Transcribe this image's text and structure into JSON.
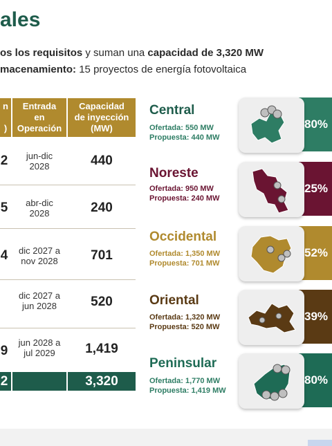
{
  "header": {
    "title": "ales",
    "line1_prefix": "os los requisitos",
    "line1_mid": " y suman una ",
    "line1_bold": "capacidad de 3,320 MW",
    "line2_bold": "macenamiento:",
    "line2_rest": " 15 proyectos de energía fotovoltaica"
  },
  "table": {
    "col0_header_top": "n",
    "col0_header_bottom": ")",
    "col_entrada": [
      "Entrada",
      "en",
      "Operación"
    ],
    "col_capacidad": [
      "Capacidad",
      "de inyección",
      "(MW)"
    ],
    "rows": [
      {
        "left": "2",
        "entrada": [
          "jun-dic",
          "2028"
        ],
        "capacidad": "440"
      },
      {
        "left": "5",
        "entrada": [
          "abr-dic",
          "2028"
        ],
        "capacidad": "240"
      },
      {
        "left": "4",
        "entrada": [
          "dic 2027 a",
          "nov 2028"
        ],
        "capacidad": "701"
      },
      {
        "left": "",
        "entrada": [
          "dic 2027 a",
          "jun 2028"
        ],
        "capacidad": "520"
      },
      {
        "left": "9",
        "entrada": [
          "jun 2028 a",
          "jul 2029"
        ],
        "capacidad": "1,419"
      }
    ],
    "total_left": "2",
    "total_capacidad": "3,320"
  },
  "regions": [
    {
      "name": "Central",
      "ofertada": "Ofertada: 550 MW",
      "propuesta": "Propuesta: 440 MW",
      "pct": "80%",
      "color": "#2e7d64",
      "name_color": "#1e5c4b",
      "map_icon": "central-map-icon"
    },
    {
      "name": "Noreste",
      "ofertada": "Ofertada: 950 MW",
      "propuesta": "Propuesta: 240 MW",
      "pct": "25%",
      "color": "#6a1432",
      "name_color": "#6a1432",
      "map_icon": "noreste-map-icon"
    },
    {
      "name": "Occidental",
      "ofertada": "Ofertada: 1,350 MW",
      "propuesta": "Propuesta: 701 MW",
      "pct": "52%",
      "color": "#b08a2e",
      "name_color": "#b08a2e",
      "map_icon": "occidental-map-icon"
    },
    {
      "name": "Oriental",
      "ofertada": "Ofertada: 1,320 MW",
      "propuesta": "Propuesta: 520 MW",
      "pct": "39%",
      "color": "#5a3a14",
      "name_color": "#5a3a14",
      "map_icon": "oriental-map-icon"
    },
    {
      "name": "Peninsular",
      "ofertada": "Ofertada: 1,770 MW",
      "propuesta": "Propuesta: 1,419 MW",
      "pct": "80%",
      "color": "#1e6b55",
      "name_color": "#1e6b55",
      "map_icon": "peninsular-map-icon"
    }
  ],
  "colors": {
    "green": "#1e5c4b",
    "gold": "#b08a2e",
    "detail_green": "#2e7d64"
  }
}
